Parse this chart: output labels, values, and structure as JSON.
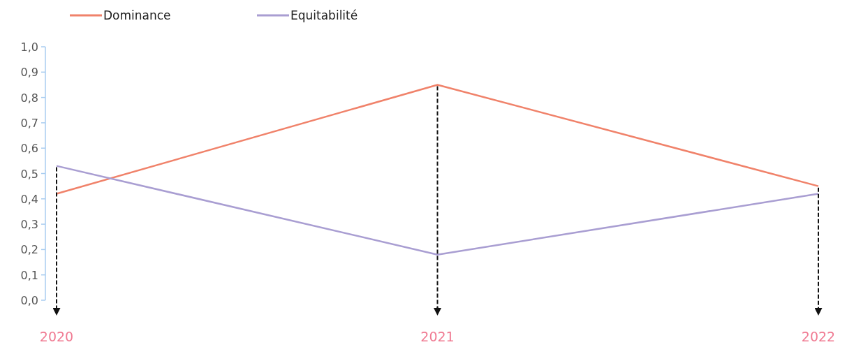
{
  "chart_data": {
    "type": "line",
    "categories": [
      "2020",
      "2021",
      "2022"
    ],
    "series": [
      {
        "name": "Dominance",
        "color": "#f0826a",
        "values": [
          0.42,
          0.85,
          0.45
        ]
      },
      {
        "name": "Equitabilité",
        "color": "#a99ed2",
        "values": [
          0.53,
          0.18,
          0.42
        ]
      }
    ],
    "ylim": [
      0,
      1
    ],
    "yticks": [
      {
        "value": 0,
        "label": "0,0"
      },
      {
        "value": 0.1,
        "label": "0,1"
      },
      {
        "value": 0.2,
        "label": "0,2"
      },
      {
        "value": 0.3,
        "label": "0,3"
      },
      {
        "value": 0.4,
        "label": "0,4"
      },
      {
        "value": 0.5,
        "label": "0,5"
      },
      {
        "value": 0.6,
        "label": "0,6"
      },
      {
        "value": 0.7,
        "label": "0,7"
      },
      {
        "value": 0.8,
        "label": "0,8"
      },
      {
        "value": 0.9,
        "label": "0,9"
      },
      {
        "value": 1,
        "label": "1,0"
      }
    ],
    "grid": false,
    "legend": "top left",
    "marker": "none",
    "line_style": "solid"
  }
}
